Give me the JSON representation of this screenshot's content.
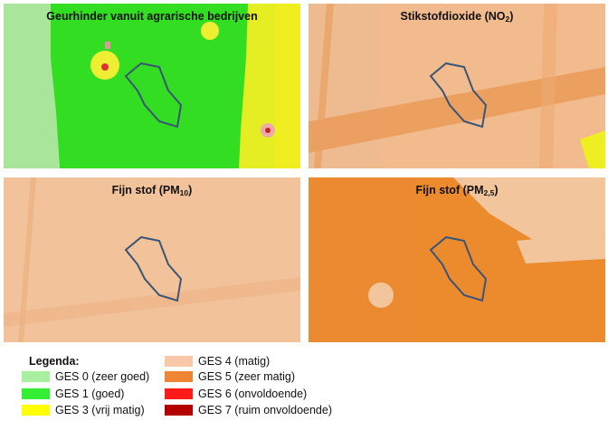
{
  "panels": [
    {
      "title": "Geurhinder vanuit agrarische bedrijven"
    },
    {
      "title_main": "Stikstofdioxide (NO",
      "title_sub": "2",
      "title_end": ")"
    },
    {
      "title_main": "Fijn stof (PM",
      "title_sub": "10",
      "title_end": ")"
    },
    {
      "title_main": "Fijn stof (PM",
      "title_sub": "2,5",
      "title_end": ")"
    }
  ],
  "legend": {
    "title": "Legenda:",
    "items": [
      {
        "label": "GES 0 (zeer goed)",
        "color": "#a8f0a0"
      },
      {
        "label": "GES 1 (goed)",
        "color": "#33ee33"
      },
      {
        "label": "GES 3 (vrij matig)",
        "color": "#ffff00"
      },
      {
        "label": "GES 4 (matig)",
        "color": "#f9c8a8"
      },
      {
        "label": "GES 5 (zeer matig)",
        "color": "#ef8533"
      },
      {
        "label": "GES 6 (onvoldoende)",
        "color": "#ff1a1a"
      },
      {
        "label": "GES 7 (ruim onvoldoende)",
        "color": "#b30000"
      }
    ]
  }
}
